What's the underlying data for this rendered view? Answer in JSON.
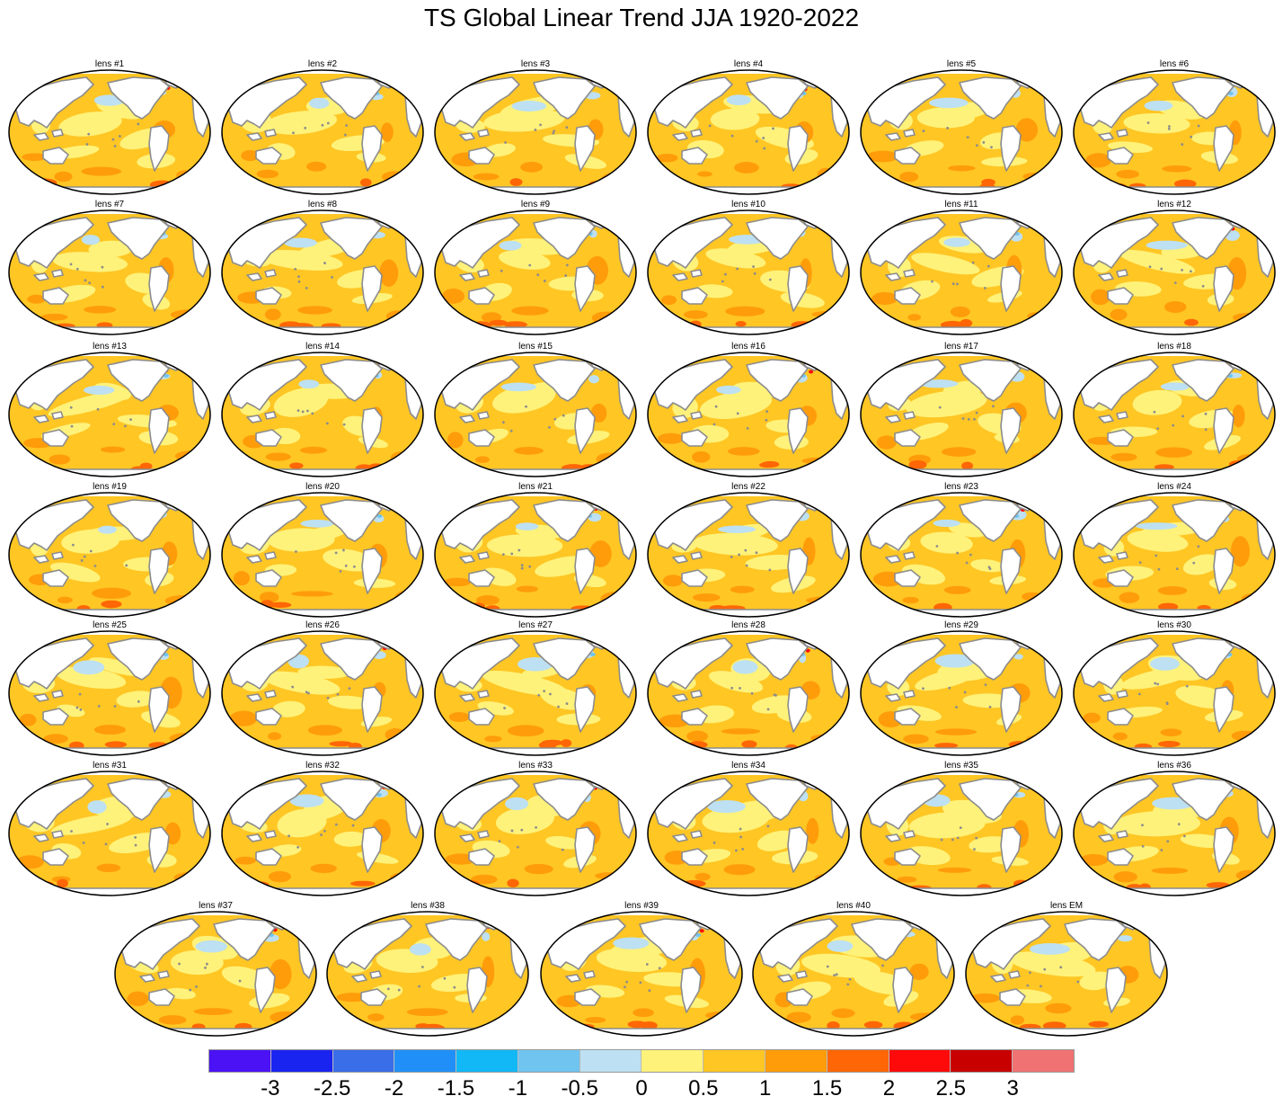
{
  "title": "TS Global Linear Trend JJA 1920-2022",
  "panels": [
    "lens #1",
    "lens #2",
    "lens #3",
    "lens #4",
    "lens #5",
    "lens #6",
    "lens #7",
    "lens #8",
    "lens #9",
    "lens #10",
    "lens #11",
    "lens #12",
    "lens #13",
    "lens #14",
    "lens #15",
    "lens #16",
    "lens #17",
    "lens #18",
    "lens #19",
    "lens #20",
    "lens #21",
    "lens #22",
    "lens #23",
    "lens #24",
    "lens #25",
    "lens #26",
    "lens #27",
    "lens #28",
    "lens #29",
    "lens #30",
    "lens #31",
    "lens #32",
    "lens #33",
    "lens #34",
    "lens #35",
    "lens #36",
    "lens #37",
    "lens #38",
    "lens #39",
    "lens #40",
    "lens EM"
  ],
  "colorbar": {
    "labels": [
      "-3",
      "-2.5",
      "-2",
      "-1.5",
      "-1",
      "-0.5",
      "0",
      "0.5",
      "1",
      "1.5",
      "2",
      "2.5",
      "3"
    ],
    "colors": [
      "#4a12f5",
      "#1a24f0",
      "#3a6ee8",
      "#2090f8",
      "#12b8f6",
      "#70c4f0",
      "#bde0f2",
      "#fff27a",
      "#ffc624",
      "#ff9c0a",
      "#ff6606",
      "#ff0a0a",
      "#c80000",
      "#f07272"
    ]
  },
  "map_colors": {
    "land": "#ffffff",
    "coastline": "#8c8c8c",
    "ocean_base": "#ffc624",
    "trend_low": "#fff27a",
    "trend_high": "#ff9c0a",
    "trend_max": "#ff6606",
    "trend_neg": "#bde0f2",
    "trend_neg2": "#70c4f0",
    "trend_hot": "#ff0a0a"
  }
}
